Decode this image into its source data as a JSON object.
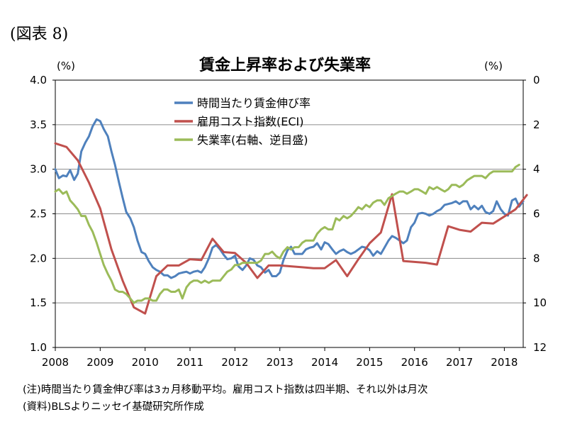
{
  "figure_label": "(図表 8)",
  "units": {
    "left": "(%)",
    "right": "(%)"
  },
  "notes": [
    "(注)時間当たり賃金伸び率は3ヵ月移動平均。雇用コスト指数は四半期、それ以外は月次",
    "(資料)BLSよりニッセイ基礎研究所作成"
  ],
  "chart_data": {
    "type": "line",
    "title": "賃金上昇率および失業率",
    "x_ticks": [
      "2008",
      "2009",
      "2010",
      "2011",
      "2012",
      "2013",
      "2014",
      "2015",
      "2016",
      "2017",
      "2018"
    ],
    "xlim": [
      2008.0,
      2018.42
    ],
    "y_left": {
      "ylim": [
        1.0,
        4.0
      ],
      "ticks": [
        "1.0",
        "1.5",
        "2.0",
        "2.5",
        "3.0",
        "3.5",
        "4.0"
      ]
    },
    "y_right": {
      "ylim": [
        0,
        12
      ],
      "inverted": true,
      "ticks": [
        "0",
        "2",
        "4",
        "6",
        "8",
        "10",
        "12"
      ]
    },
    "grid": true,
    "legend_position": "top-left",
    "series": [
      {
        "name": "時間当たり賃金伸び率",
        "color": "#4f81bd",
        "axis": "left",
        "points": [
          [
            2008.0,
            3.0
          ],
          [
            2008.08,
            2.9
          ],
          [
            2008.17,
            2.93
          ],
          [
            2008.25,
            2.92
          ],
          [
            2008.33,
            2.99
          ],
          [
            2008.42,
            2.88
          ],
          [
            2008.5,
            2.95
          ],
          [
            2008.58,
            3.2
          ],
          [
            2008.67,
            3.3
          ],
          [
            2008.75,
            3.37
          ],
          [
            2008.83,
            3.48
          ],
          [
            2008.92,
            3.56
          ],
          [
            2009.0,
            3.54
          ],
          [
            2009.08,
            3.45
          ],
          [
            2009.17,
            3.37
          ],
          [
            2009.25,
            3.2
          ],
          [
            2009.33,
            3.05
          ],
          [
            2009.42,
            2.85
          ],
          [
            2009.5,
            2.68
          ],
          [
            2009.58,
            2.52
          ],
          [
            2009.67,
            2.45
          ],
          [
            2009.75,
            2.35
          ],
          [
            2009.83,
            2.2
          ],
          [
            2009.92,
            2.07
          ],
          [
            2010.0,
            2.05
          ],
          [
            2010.08,
            1.97
          ],
          [
            2010.17,
            1.9
          ],
          [
            2010.25,
            1.87
          ],
          [
            2010.33,
            1.85
          ],
          [
            2010.42,
            1.81
          ],
          [
            2010.5,
            1.81
          ],
          [
            2010.58,
            1.78
          ],
          [
            2010.67,
            1.8
          ],
          [
            2010.75,
            1.83
          ],
          [
            2010.83,
            1.84
          ],
          [
            2010.92,
            1.85
          ],
          [
            2011.0,
            1.83
          ],
          [
            2011.08,
            1.85
          ],
          [
            2011.17,
            1.86
          ],
          [
            2011.25,
            1.84
          ],
          [
            2011.33,
            1.9
          ],
          [
            2011.42,
            2.0
          ],
          [
            2011.5,
            2.12
          ],
          [
            2011.58,
            2.15
          ],
          [
            2011.67,
            2.1
          ],
          [
            2011.75,
            2.04
          ],
          [
            2011.83,
            1.99
          ],
          [
            2011.92,
            2.0
          ],
          [
            2012.0,
            2.03
          ],
          [
            2012.08,
            1.91
          ],
          [
            2012.17,
            1.87
          ],
          [
            2012.25,
            1.92
          ],
          [
            2012.33,
            2.0
          ],
          [
            2012.42,
            1.98
          ],
          [
            2012.5,
            1.92
          ],
          [
            2012.58,
            1.9
          ],
          [
            2012.67,
            1.84
          ],
          [
            2012.75,
            1.87
          ],
          [
            2012.83,
            1.8
          ],
          [
            2012.92,
            1.8
          ],
          [
            2013.0,
            1.84
          ],
          [
            2013.08,
            1.98
          ],
          [
            2013.17,
            2.09
          ],
          [
            2013.25,
            2.13
          ],
          [
            2013.33,
            2.05
          ],
          [
            2013.42,
            2.05
          ],
          [
            2013.5,
            2.05
          ],
          [
            2013.58,
            2.1
          ],
          [
            2013.67,
            2.12
          ],
          [
            2013.75,
            2.13
          ],
          [
            2013.83,
            2.17
          ],
          [
            2013.92,
            2.1
          ],
          [
            2014.0,
            2.18
          ],
          [
            2014.08,
            2.16
          ],
          [
            2014.17,
            2.1
          ],
          [
            2014.25,
            2.05
          ],
          [
            2014.33,
            2.08
          ],
          [
            2014.42,
            2.1
          ],
          [
            2014.5,
            2.07
          ],
          [
            2014.58,
            2.05
          ],
          [
            2014.67,
            2.07
          ],
          [
            2014.75,
            2.1
          ],
          [
            2014.83,
            2.13
          ],
          [
            2014.92,
            2.12
          ],
          [
            2015.0,
            2.09
          ],
          [
            2015.08,
            2.03
          ],
          [
            2015.17,
            2.08
          ],
          [
            2015.25,
            2.05
          ],
          [
            2015.33,
            2.12
          ],
          [
            2015.42,
            2.2
          ],
          [
            2015.5,
            2.25
          ],
          [
            2015.58,
            2.23
          ],
          [
            2015.67,
            2.2
          ],
          [
            2015.75,
            2.17
          ],
          [
            2015.83,
            2.2
          ],
          [
            2015.92,
            2.35
          ],
          [
            2016.0,
            2.4
          ],
          [
            2016.08,
            2.5
          ],
          [
            2016.17,
            2.51
          ],
          [
            2016.25,
            2.5
          ],
          [
            2016.33,
            2.48
          ],
          [
            2016.42,
            2.5
          ],
          [
            2016.5,
            2.53
          ],
          [
            2016.58,
            2.55
          ],
          [
            2016.67,
            2.6
          ],
          [
            2016.75,
            2.61
          ],
          [
            2016.83,
            2.62
          ],
          [
            2016.92,
            2.64
          ],
          [
            2017.0,
            2.61
          ],
          [
            2017.08,
            2.64
          ],
          [
            2017.17,
            2.64
          ],
          [
            2017.25,
            2.55
          ],
          [
            2017.33,
            2.59
          ],
          [
            2017.42,
            2.55
          ],
          [
            2017.5,
            2.59
          ],
          [
            2017.58,
            2.52
          ],
          [
            2017.67,
            2.5
          ],
          [
            2017.75,
            2.53
          ],
          [
            2017.83,
            2.64
          ],
          [
            2017.92,
            2.55
          ],
          [
            2018.0,
            2.5
          ],
          [
            2018.08,
            2.48
          ],
          [
            2018.17,
            2.65
          ],
          [
            2018.25,
            2.67
          ],
          [
            2018.33,
            2.58
          ],
          [
            2018.42,
            2.64
          ]
        ]
      },
      {
        "name": "雇用コスト指数(ECI)",
        "color": "#c0504d",
        "axis": "left",
        "points": [
          [
            2008.0,
            3.29
          ],
          [
            2008.25,
            3.25
          ],
          [
            2008.5,
            3.1
          ],
          [
            2008.75,
            2.85
          ],
          [
            2009.0,
            2.56
          ],
          [
            2009.25,
            2.1
          ],
          [
            2009.5,
            1.75
          ],
          [
            2009.75,
            1.45
          ],
          [
            2010.0,
            1.38
          ],
          [
            2010.25,
            1.8
          ],
          [
            2010.5,
            1.92
          ],
          [
            2010.75,
            1.92
          ],
          [
            2011.0,
            1.99
          ],
          [
            2011.25,
            1.98
          ],
          [
            2011.5,
            2.22
          ],
          [
            2011.75,
            2.07
          ],
          [
            2012.0,
            2.06
          ],
          [
            2012.25,
            1.95
          ],
          [
            2012.5,
            1.78
          ],
          [
            2012.75,
            1.92
          ],
          [
            2013.0,
            1.92
          ],
          [
            2013.25,
            1.91
          ],
          [
            2013.5,
            1.9
          ],
          [
            2013.75,
            1.89
          ],
          [
            2014.0,
            1.89
          ],
          [
            2014.25,
            1.98
          ],
          [
            2014.5,
            1.8
          ],
          [
            2014.75,
            1.99
          ],
          [
            2015.0,
            2.17
          ],
          [
            2015.25,
            2.29
          ],
          [
            2015.5,
            2.72
          ],
          [
            2015.75,
            1.97
          ],
          [
            2016.0,
            1.96
          ],
          [
            2016.25,
            1.95
          ],
          [
            2016.5,
            1.93
          ],
          [
            2016.75,
            2.36
          ],
          [
            2017.0,
            2.32
          ],
          [
            2017.25,
            2.3
          ],
          [
            2017.5,
            2.4
          ],
          [
            2017.75,
            2.39
          ],
          [
            2018.0,
            2.47
          ],
          [
            2018.25,
            2.55
          ],
          [
            2018.5,
            2.71
          ]
        ]
      },
      {
        "name": "失業率(右軸、逆目盛)",
        "color": "#9bbb59",
        "axis": "right",
        "points": [
          [
            2008.0,
            5.0
          ],
          [
            2008.08,
            4.9
          ],
          [
            2008.17,
            5.1
          ],
          [
            2008.25,
            5.0
          ],
          [
            2008.33,
            5.4
          ],
          [
            2008.42,
            5.6
          ],
          [
            2008.5,
            5.8
          ],
          [
            2008.58,
            6.1
          ],
          [
            2008.67,
            6.1
          ],
          [
            2008.75,
            6.5
          ],
          [
            2008.83,
            6.8
          ],
          [
            2008.92,
            7.3
          ],
          [
            2009.0,
            7.8
          ],
          [
            2009.08,
            8.3
          ],
          [
            2009.17,
            8.7
          ],
          [
            2009.25,
            9.0
          ],
          [
            2009.33,
            9.4
          ],
          [
            2009.42,
            9.5
          ],
          [
            2009.5,
            9.5
          ],
          [
            2009.58,
            9.6
          ],
          [
            2009.67,
            9.8
          ],
          [
            2009.75,
            10.0
          ],
          [
            2009.83,
            9.9
          ],
          [
            2009.92,
            9.9
          ],
          [
            2010.0,
            9.8
          ],
          [
            2010.08,
            9.8
          ],
          [
            2010.17,
            9.9
          ],
          [
            2010.25,
            9.9
          ],
          [
            2010.33,
            9.6
          ],
          [
            2010.42,
            9.4
          ],
          [
            2010.5,
            9.4
          ],
          [
            2010.58,
            9.5
          ],
          [
            2010.67,
            9.5
          ],
          [
            2010.75,
            9.4
          ],
          [
            2010.83,
            9.8
          ],
          [
            2010.92,
            9.3
          ],
          [
            2011.0,
            9.1
          ],
          [
            2011.08,
            9.0
          ],
          [
            2011.17,
            9.0
          ],
          [
            2011.25,
            9.1
          ],
          [
            2011.33,
            9.0
          ],
          [
            2011.42,
            9.1
          ],
          [
            2011.5,
            9.0
          ],
          [
            2011.58,
            9.0
          ],
          [
            2011.67,
            9.0
          ],
          [
            2011.75,
            8.8
          ],
          [
            2011.83,
            8.6
          ],
          [
            2011.92,
            8.5
          ],
          [
            2012.0,
            8.3
          ],
          [
            2012.08,
            8.3
          ],
          [
            2012.17,
            8.2
          ],
          [
            2012.25,
            8.2
          ],
          [
            2012.33,
            8.2
          ],
          [
            2012.42,
            8.2
          ],
          [
            2012.5,
            8.2
          ],
          [
            2012.58,
            8.1
          ],
          [
            2012.67,
            7.8
          ],
          [
            2012.75,
            7.8
          ],
          [
            2012.83,
            7.7
          ],
          [
            2012.92,
            7.9
          ],
          [
            2013.0,
            8.0
          ],
          [
            2013.08,
            7.7
          ],
          [
            2013.17,
            7.5
          ],
          [
            2013.25,
            7.6
          ],
          [
            2013.33,
            7.5
          ],
          [
            2013.42,
            7.5
          ],
          [
            2013.5,
            7.3
          ],
          [
            2013.58,
            7.2
          ],
          [
            2013.67,
            7.2
          ],
          [
            2013.75,
            7.2
          ],
          [
            2013.83,
            6.9
          ],
          [
            2013.92,
            6.7
          ],
          [
            2014.0,
            6.6
          ],
          [
            2014.08,
            6.7
          ],
          [
            2014.17,
            6.7
          ],
          [
            2014.25,
            6.2
          ],
          [
            2014.33,
            6.3
          ],
          [
            2014.42,
            6.1
          ],
          [
            2014.5,
            6.2
          ],
          [
            2014.58,
            6.1
          ],
          [
            2014.67,
            5.9
          ],
          [
            2014.75,
            5.7
          ],
          [
            2014.83,
            5.8
          ],
          [
            2014.92,
            5.6
          ],
          [
            2015.0,
            5.7
          ],
          [
            2015.08,
            5.5
          ],
          [
            2015.17,
            5.4
          ],
          [
            2015.25,
            5.4
          ],
          [
            2015.33,
            5.6
          ],
          [
            2015.42,
            5.3
          ],
          [
            2015.5,
            5.2
          ],
          [
            2015.58,
            5.1
          ],
          [
            2015.67,
            5.0
          ],
          [
            2015.75,
            5.0
          ],
          [
            2015.83,
            5.1
          ],
          [
            2015.92,
            5.0
          ],
          [
            2016.0,
            4.9
          ],
          [
            2016.08,
            4.9
          ],
          [
            2016.17,
            5.0
          ],
          [
            2016.25,
            5.1
          ],
          [
            2016.33,
            4.8
          ],
          [
            2016.42,
            4.9
          ],
          [
            2016.5,
            4.8
          ],
          [
            2016.58,
            4.9
          ],
          [
            2016.67,
            5.0
          ],
          [
            2016.75,
            4.9
          ],
          [
            2016.83,
            4.7
          ],
          [
            2016.92,
            4.7
          ],
          [
            2017.0,
            4.8
          ],
          [
            2017.08,
            4.7
          ],
          [
            2017.17,
            4.5
          ],
          [
            2017.25,
            4.4
          ],
          [
            2017.33,
            4.3
          ],
          [
            2017.42,
            4.3
          ],
          [
            2017.5,
            4.3
          ],
          [
            2017.58,
            4.4
          ],
          [
            2017.67,
            4.2
          ],
          [
            2017.75,
            4.1
          ],
          [
            2017.83,
            4.1
          ],
          [
            2017.92,
            4.1
          ],
          [
            2018.0,
            4.1
          ],
          [
            2018.08,
            4.1
          ],
          [
            2018.17,
            4.1
          ],
          [
            2018.25,
            3.9
          ],
          [
            2018.33,
            3.8
          ]
        ]
      }
    ]
  }
}
